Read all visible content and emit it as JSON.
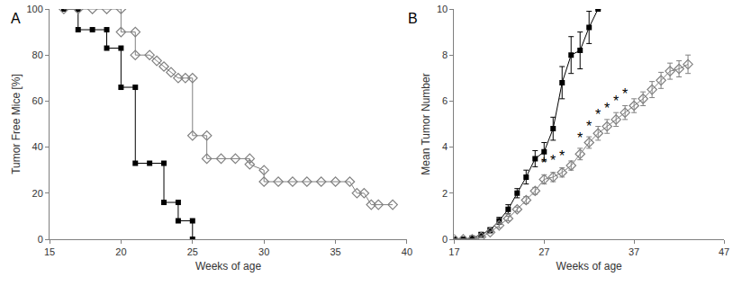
{
  "chart_data": [
    {
      "type": "line",
      "title": "A",
      "x_label": "Weeks of age",
      "y_label": "Tumor Free Mice [%]",
      "xlim": [
        15,
        40
      ],
      "ylim": [
        0,
        100
      ],
      "xticks": [
        15,
        20,
        25,
        30,
        35,
        40
      ],
      "yticks": [
        0,
        20,
        40,
        60,
        80,
        100
      ],
      "grid": false,
      "series": [
        {
          "color": "#000000",
          "marker": "square",
          "line_style": "solid",
          "x": [
            16,
            17,
            17,
            18,
            19,
            19,
            20,
            20,
            21,
            21,
            22,
            23,
            23,
            24,
            24,
            25,
            25
          ],
          "values": [
            100,
            100,
            91,
            91,
            91,
            83,
            83,
            66,
            66,
            33,
            33,
            33,
            16,
            16,
            8,
            8,
            0
          ]
        },
        {
          "color": "#808080",
          "marker": "diamond-open",
          "line_style": "solid",
          "x": [
            16,
            17,
            18,
            19,
            20,
            20,
            21,
            21,
            22,
            22.5,
            23,
            23.5,
            24,
            24.5,
            25,
            25,
            26,
            26,
            27,
            28,
            29,
            29,
            30,
            30,
            31,
            32,
            33,
            34,
            35,
            36,
            36.5,
            37,
            37.5,
            38,
            39
          ],
          "values": [
            100,
            100,
            100,
            100,
            100,
            90,
            90,
            80,
            80,
            77.5,
            75,
            72.5,
            70,
            70,
            70,
            45,
            45,
            35,
            35,
            35,
            35,
            32.5,
            30,
            25,
            25,
            25,
            25,
            25,
            25,
            25,
            20,
            20,
            15,
            15,
            15
          ]
        }
      ]
    },
    {
      "type": "line",
      "title": "B",
      "x_label": "Weeks of age",
      "y_label": "Mean Tumor Number",
      "xlim": [
        17,
        47
      ],
      "ylim": [
        0,
        10
      ],
      "xticks": [
        17,
        27,
        37,
        47
      ],
      "yticks": [
        0,
        2,
        4,
        6,
        8,
        10
      ],
      "grid": false,
      "series": [
        {
          "color": "#000000",
          "marker": "square",
          "line_style": "solid",
          "x": [
            17,
            18,
            19,
            20,
            21,
            22,
            23,
            24,
            25,
            26,
            27,
            28,
            29,
            30,
            31,
            32,
            33
          ],
          "values": [
            0,
            0,
            0.05,
            0.2,
            0.4,
            0.8,
            1.3,
            2.0,
            2.7,
            3.5,
            3.8,
            4.8,
            6.8,
            8.0,
            8.2,
            9.2,
            10
          ],
          "error": [
            0,
            0,
            0.05,
            0.1,
            0.1,
            0.15,
            0.2,
            0.2,
            0.3,
            0.35,
            0.4,
            0.5,
            0.7,
            0.8,
            0.8,
            0.7,
            0
          ]
        },
        {
          "color": "#808080",
          "marker": "diamond-open",
          "line_style": "solid",
          "x": [
            17,
            18,
            19,
            20,
            21,
            22,
            23,
            24,
            25,
            26,
            27,
            28,
            29,
            30,
            31,
            32,
            33,
            34,
            35,
            36,
            37,
            38,
            39,
            40,
            41,
            42,
            43
          ],
          "values": [
            0,
            0,
            0,
            0.1,
            0.3,
            0.6,
            0.9,
            1.3,
            1.7,
            2.1,
            2.6,
            2.7,
            2.9,
            3.2,
            3.7,
            4.2,
            4.6,
            4.9,
            5.2,
            5.5,
            5.8,
            6.1,
            6.5,
            6.9,
            7.3,
            7.4,
            7.6
          ],
          "error": [
            0,
            0,
            0,
            0.05,
            0.05,
            0.1,
            0.1,
            0.1,
            0.15,
            0.15,
            0.2,
            0.2,
            0.2,
            0.2,
            0.25,
            0.25,
            0.3,
            0.3,
            0.3,
            0.3,
            0.3,
            0.3,
            0.35,
            0.35,
            0.35,
            0.35,
            0.4
          ]
        }
      ],
      "annotations": [
        {
          "x": 27,
          "y": 3.3,
          "text": "*"
        },
        {
          "x": 28,
          "y": 3.4,
          "text": "*"
        },
        {
          "x": 29,
          "y": 3.6,
          "text": "*"
        },
        {
          "x": 31,
          "y": 4.4,
          "text": "*"
        },
        {
          "x": 32,
          "y": 4.9,
          "text": "*"
        },
        {
          "x": 33,
          "y": 5.4,
          "text": "*"
        },
        {
          "x": 34,
          "y": 5.7,
          "text": "*"
        },
        {
          "x": 35,
          "y": 6.0,
          "text": "*"
        },
        {
          "x": 36,
          "y": 6.3,
          "text": "*"
        }
      ]
    }
  ]
}
